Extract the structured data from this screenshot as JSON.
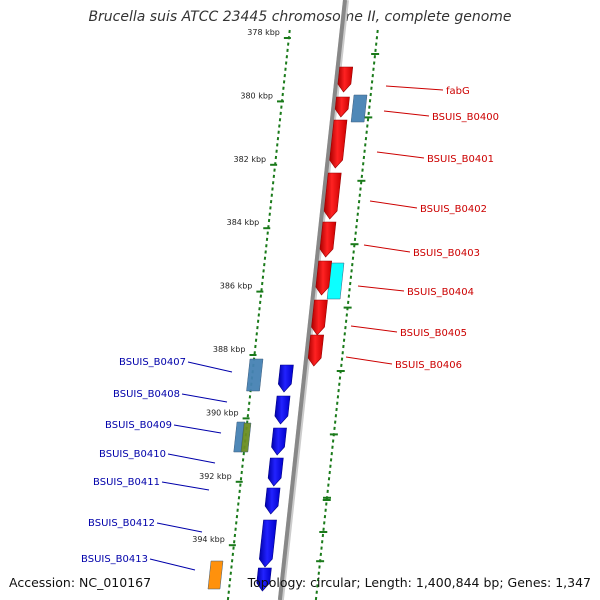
{
  "title": "Brucella suis ATCC 23445 chromosome II, complete genome",
  "footer": {
    "accession": "Accession: NC_010167",
    "summary": "Topology: circular; Length: 1,400,844 bp; Genes: 1,347"
  },
  "colors": {
    "forward_cds": "#ff0000",
    "reverse_cds": "#0000ff",
    "forward_label": "#cc0000",
    "reverse_label": "#0000aa",
    "ruler": "#1a7a1a",
    "backbone": "#999999",
    "steelblue": "#4682b4",
    "cyan": "#00ffff",
    "olive": "#6b8e23",
    "orange": "#ff8c00"
  },
  "ticks": [
    {
      "label": "378 kbp",
      "kbp": 378
    },
    {
      "label": "380 kbp",
      "kbp": 380
    },
    {
      "label": "382 kbp",
      "kbp": 382
    },
    {
      "label": "384 kbp",
      "kbp": 384
    },
    {
      "label": "386 kbp",
      "kbp": 386
    },
    {
      "label": "388 kbp",
      "kbp": 388
    },
    {
      "label": "390 kbp",
      "kbp": 390
    },
    {
      "label": "392 kbp",
      "kbp": 392
    },
    {
      "label": "394 kbp",
      "kbp": 394
    }
  ],
  "forward_genes": [
    {
      "label": "fabG"
    },
    {
      "label": "BSUIS_B0400"
    },
    {
      "label": "BSUIS_B0401"
    },
    {
      "label": "BSUIS_B0402"
    },
    {
      "label": "BSUIS_B0403"
    },
    {
      "label": "BSUIS_B0404"
    },
    {
      "label": "BSUIS_B0405"
    },
    {
      "label": "BSUIS_B0406"
    }
  ],
  "reverse_genes": [
    {
      "label": "BSUIS_B0407"
    },
    {
      "label": "BSUIS_B0408"
    },
    {
      "label": "BSUIS_B0409"
    },
    {
      "label": "BSUIS_B0410"
    },
    {
      "label": "BSUIS_B0411"
    },
    {
      "label": "BSUIS_B0412"
    },
    {
      "label": "BSUIS_B0413"
    }
  ],
  "features": [
    {
      "name": "forward-feature-steelblue",
      "color": "steelblue"
    },
    {
      "name": "forward-feature-cyan",
      "color": "cyan"
    },
    {
      "name": "reverse-feature-steelblue-1",
      "color": "steelblue"
    },
    {
      "name": "reverse-feature-steelblue-2",
      "color": "steelblue"
    },
    {
      "name": "reverse-feature-olive",
      "color": "olive"
    },
    {
      "name": "reverse-feature-orange",
      "color": "orange"
    }
  ]
}
